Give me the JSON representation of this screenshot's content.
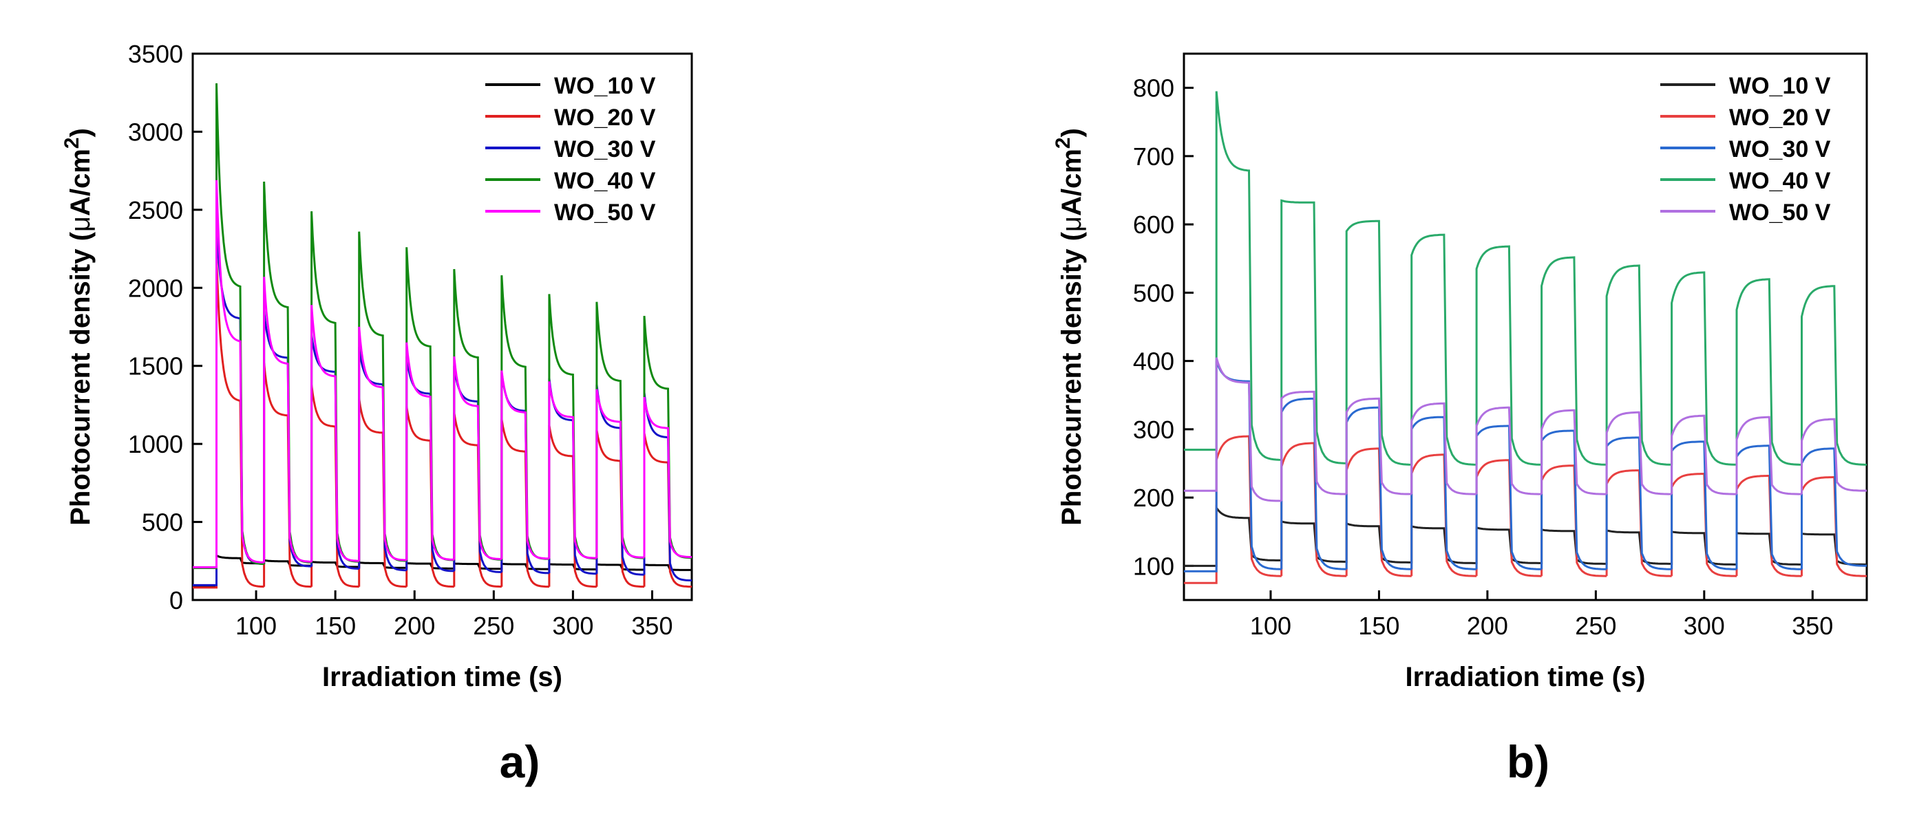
{
  "chart_data": [
    {
      "panel_label": "a)",
      "type": "line",
      "xlabel": "Irradiation time (s)",
      "ylabel_main": "Photocurrent density (",
      "ylabel_mu": "μ",
      "ylabel_unit": "A/cm",
      "ylabel_sup": "2",
      "ylabel_close": ")",
      "xlim": [
        60,
        375
      ],
      "ylim": [
        0,
        3500
      ],
      "xticks": [
        100,
        150,
        200,
        250,
        300,
        350
      ],
      "yticks": [
        0,
        500,
        1000,
        1500,
        2000,
        2500,
        3000,
        3500
      ],
      "legend_position": "top-right",
      "light_on": [
        75,
        105,
        135,
        165,
        195,
        225,
        255,
        285,
        315,
        345
      ],
      "light_off": [
        90,
        120,
        150,
        180,
        210,
        240,
        270,
        300,
        330,
        360
      ],
      "series": [
        {
          "name": "WO_10 V",
          "color": "#000000",
          "dark": [
            85,
            235,
            220,
            212,
            206,
            202,
            200,
            198,
            196,
            194,
            192
          ],
          "peak": [
            285,
            255,
            245,
            240,
            236,
            234,
            232,
            230,
            228,
            226
          ],
          "end": [
            268,
            248,
            240,
            236,
            233,
            231,
            229,
            227,
            225,
            223
          ]
        },
        {
          "name": "WO_20 V",
          "color": "#e02020",
          "dark": [
            80,
            85,
            85,
            85,
            85,
            85,
            85,
            85,
            85,
            85,
            85
          ],
          "peak": [
            2200,
            1520,
            1380,
            1290,
            1240,
            1200,
            1160,
            1120,
            1090,
            1070
          ],
          "end": [
            1270,
            1180,
            1110,
            1070,
            1020,
            990,
            950,
            920,
            890,
            880
          ]
        },
        {
          "name": "WO_30 V",
          "color": "#1414c8",
          "dark": [
            95,
            230,
            215,
            200,
            190,
            185,
            178,
            172,
            168,
            162,
            125
          ],
          "peak": [
            2400,
            1850,
            1700,
            1620,
            1560,
            1500,
            1460,
            1420,
            1380,
            1330
          ],
          "end": [
            1800,
            1550,
            1460,
            1380,
            1320,
            1270,
            1210,
            1150,
            1100,
            1040
          ]
        },
        {
          "name": "WO_40 V",
          "color": "#128a12",
          "dark": [
            205,
            230,
            240,
            245,
            250,
            255,
            258,
            262,
            265,
            268,
            270
          ],
          "peak": [
            3310,
            2680,
            2490,
            2360,
            2260,
            2120,
            2080,
            1960,
            1910,
            1820
          ],
          "end": [
            2000,
            1870,
            1770,
            1690,
            1620,
            1550,
            1490,
            1440,
            1400,
            1350
          ]
        },
        {
          "name": "WO_50 V",
          "color": "#ff00ff",
          "dark": [
            210,
            240,
            245,
            250,
            255,
            258,
            262,
            265,
            268,
            272,
            275
          ],
          "peak": [
            2690,
            2070,
            1890,
            1750,
            1650,
            1560,
            1470,
            1400,
            1350,
            1300
          ],
          "end": [
            1650,
            1510,
            1430,
            1360,
            1300,
            1240,
            1200,
            1170,
            1140,
            1100
          ]
        }
      ]
    },
    {
      "panel_label": "b)",
      "type": "line",
      "xlabel": "Irradiation time (s)",
      "ylabel_main": "Photocurrent density (",
      "ylabel_mu": "μ",
      "ylabel_unit": "A/cm",
      "ylabel_sup": "2",
      "ylabel_close": ")",
      "xlim": [
        60,
        375
      ],
      "ylim": [
        50,
        850
      ],
      "xticks": [
        100,
        150,
        200,
        250,
        300,
        350
      ],
      "yticks": [
        100,
        200,
        300,
        400,
        500,
        600,
        700,
        800
      ],
      "legend_position": "top-right",
      "light_on": [
        75,
        105,
        135,
        165,
        195,
        225,
        255,
        285,
        315,
        345
      ],
      "light_off": [
        90,
        120,
        150,
        180,
        210,
        240,
        270,
        300,
        330,
        360
      ],
      "series": [
        {
          "name": "WO_10 V",
          "color": "#222222",
          "dark": [
            100,
            108,
            106,
            105,
            104,
            104,
            103,
            103,
            102,
            102,
            102
          ],
          "peak": [
            185,
            165,
            162,
            158,
            156,
            153,
            152,
            150,
            148,
            147
          ],
          "end": [
            170,
            162,
            158,
            155,
            153,
            151,
            149,
            148,
            147,
            146
          ]
        },
        {
          "name": "WO_20 V",
          "color": "#e84040",
          "dark": [
            75,
            85,
            85,
            85,
            85,
            85,
            85,
            85,
            85,
            85,
            85
          ],
          "peak": [
            255,
            245,
            240,
            235,
            230,
            225,
            220,
            215,
            212,
            210
          ],
          "end": [
            290,
            280,
            272,
            263,
            255,
            247,
            240,
            235,
            232,
            230
          ]
        },
        {
          "name": "WO_30 V",
          "color": "#2a6ad0",
          "dark": [
            92,
            95,
            95,
            95,
            95,
            95,
            95,
            95,
            95,
            95,
            100
          ],
          "peak": [
            400,
            325,
            310,
            300,
            290,
            283,
            275,
            268,
            260,
            250
          ],
          "end": [
            370,
            345,
            332,
            318,
            305,
            298,
            288,
            282,
            276,
            272
          ]
        },
        {
          "name": "WO_40 V",
          "color": "#2aaa6a",
          "dark": [
            270,
            255,
            250,
            248,
            248,
            248,
            248,
            248,
            248,
            248,
            248
          ],
          "peak": [
            795,
            635,
            590,
            555,
            535,
            510,
            495,
            485,
            475,
            465
          ],
          "end": [
            678,
            632,
            605,
            585,
            568,
            552,
            540,
            530,
            520,
            510
          ]
        },
        {
          "name": "WO_50 V",
          "color": "#b070e0",
          "dark": [
            210,
            195,
            205,
            205,
            205,
            205,
            205,
            205,
            205,
            205,
            210
          ],
          "peak": [
            405,
            345,
            325,
            312,
            305,
            300,
            295,
            290,
            285,
            283
          ],
          "end": [
            368,
            355,
            345,
            338,
            332,
            328,
            325,
            320,
            318,
            315
          ]
        }
      ]
    }
  ]
}
